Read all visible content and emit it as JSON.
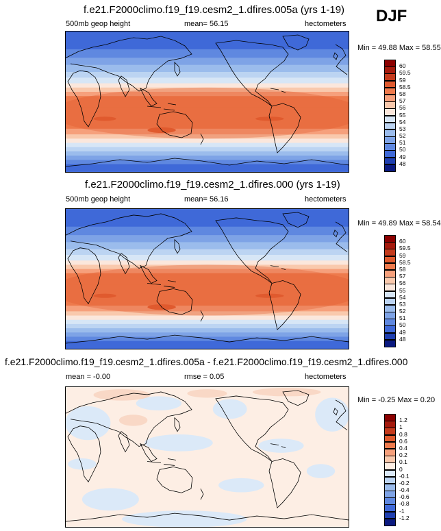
{
  "season": "DJF",
  "panels": [
    {
      "title": "f.e21.F2000climo.f19_f19.cesm2_1.dfires.005a (yrs 1-19)",
      "left": "500mb geop height",
      "center": "mean=  56.15",
      "right": "hectometers",
      "minmax": "Min =  49.88 Max =  58.55",
      "kind": "abs"
    },
    {
      "title": "f.e21.F2000climo.f19_f19.cesm2_1.dfires.000 (yrs 1-19)",
      "left": "500mb geop height",
      "center": "mean=  56.16",
      "right": "hectometers",
      "minmax": "Min =  49.89 Max =  58.54",
      "kind": "abs"
    },
    {
      "title": "f.e21.F2000climo.f19_f19.cesm2_1.dfires.005a - f.e21.F2000climo.f19_f19.cesm2_1.dfires.000",
      "left": "mean =  -0.00",
      "center": "rmse =  0.05",
      "right": "hectometers",
      "minmax": "Min =  -0.25 Max =  0.20",
      "kind": "diff"
    }
  ],
  "colorbar_abs": {
    "labels": [
      "60",
      "59.5",
      "59",
      "58.5",
      "58",
      "57",
      "56",
      "55",
      "54",
      "53",
      "52",
      "51",
      "50",
      "49",
      "48"
    ],
    "colors": [
      "#8b0000",
      "#a51a0d",
      "#c43a1c",
      "#e05a2e",
      "#ee7a4c",
      "#f6a07c",
      "#f9c9ad",
      "#fbe7dc",
      "#d7e6f6",
      "#bcd4f2",
      "#9bbcec",
      "#7ea3e6",
      "#5f88e0",
      "#3f69d8",
      "#1f3fb0",
      "#0b1a80"
    ]
  },
  "colorbar_diff": {
    "labels": [
      "1.2",
      "1",
      "0.8",
      "0.6",
      "0.4",
      "0.2",
      "0.1",
      "0",
      "-0.1",
      "-0.2",
      "-0.4",
      "-0.6",
      "-0.8",
      "-1",
      "-1.2"
    ],
    "colors": [
      "#8b0000",
      "#a51a0d",
      "#c43a1c",
      "#e05a2e",
      "#ee7a4c",
      "#f6a07c",
      "#f9c9ad",
      "#fdeee4",
      "#dbe9f8",
      "#bcd4f2",
      "#9bbcec",
      "#7ea3e6",
      "#5f88e0",
      "#3f69d8",
      "#1f3fb0",
      "#0b1a80"
    ]
  }
}
